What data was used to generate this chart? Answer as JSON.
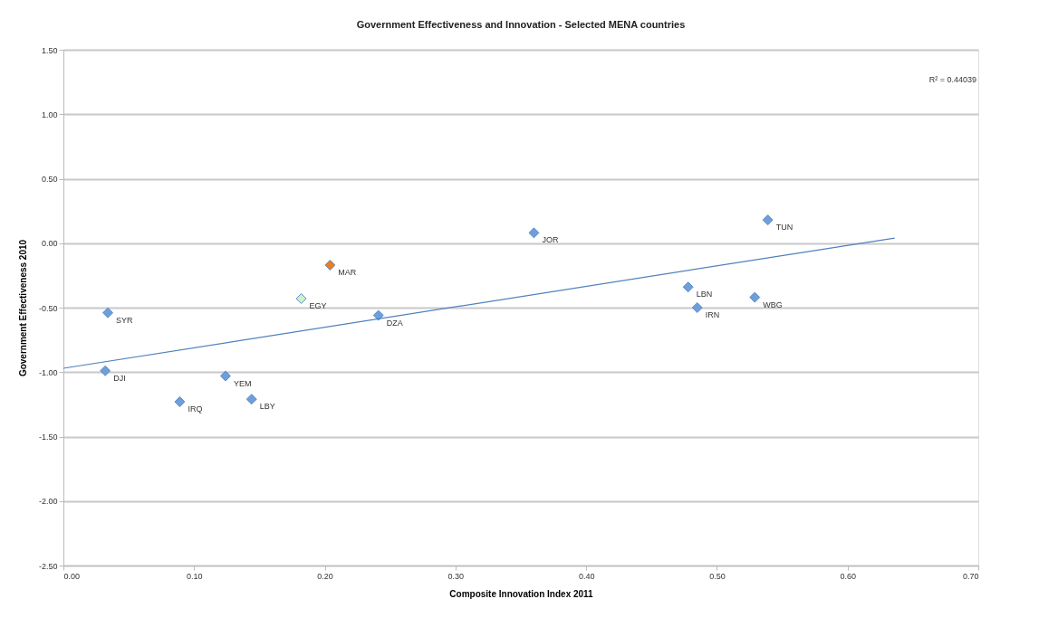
{
  "chart_data": {
    "type": "scatter",
    "title": "Government Effectiveness and Innovation - Selected MENA countries",
    "xlabel": "Composite Innovation Index 2011",
    "ylabel": "Government Effectiveness 2010",
    "xlim": [
      0,
      0.7
    ],
    "xticks": [
      {
        "value": 0,
        "label": "0.00"
      },
      {
        "value": 0.1,
        "label": "0.10"
      },
      {
        "value": 0.2,
        "label": "0.20"
      },
      {
        "value": 0.3,
        "label": "0.30"
      },
      {
        "value": 0.4,
        "label": "0.40"
      },
      {
        "value": 0.5,
        "label": "0.50"
      },
      {
        "value": 0.6,
        "label": "0.60"
      },
      {
        "value": 0.7,
        "label": "0.70"
      }
    ],
    "ylim": [
      -2.5,
      1.5
    ],
    "yticks": [
      {
        "value": -2.5,
        "label": "-2.50"
      },
      {
        "value": -2,
        "label": "-2.00"
      },
      {
        "value": -1.5,
        "label": "-1.50"
      },
      {
        "value": -1,
        "label": "-1.00"
      },
      {
        "value": -0.5,
        "label": "-0.50"
      },
      {
        "value": 0,
        "label": "0.00"
      },
      {
        "value": 0.5,
        "label": "0.50"
      },
      {
        "value": 1,
        "label": "1.00"
      },
      {
        "value": 1.5,
        "label": "1.50"
      }
    ],
    "grid": "y",
    "marker": "diamond",
    "series": [
      {
        "x": [
          0.034,
          0.032,
          0.089,
          0.124,
          0.144,
          0.182,
          0.204,
          0.241,
          0.36,
          0.478,
          0.485,
          0.529,
          0.539
        ],
        "values": [
          -0.54,
          -0.99,
          -1.23,
          -1.03,
          -1.21,
          -0.43,
          -0.17,
          -0.56,
          0.08,
          -0.34,
          -0.5,
          -0.42,
          0.18
        ],
        "colors": [
          "#6f9fd8",
          "#6f9fd8",
          "#6f9fd8",
          "#6f9fd8",
          "#6f9fd8",
          "#ccf2cc",
          "#f07b1a",
          "#6f9fd8",
          "#6f9fd8",
          "#6f9fd8",
          "#6f9fd8",
          "#6f9fd8",
          "#6f9fd8"
        ]
      },
      {
        "type": "line",
        "x": [
          0,
          0.636
        ],
        "values": [
          -0.97,
          0.04
        ],
        "color": "#4f81bd",
        "marker": "none"
      }
    ],
    "annotations": [
      {
        "text": "SYR",
        "x": 0.034,
        "y": -0.54
      },
      {
        "text": "DJI",
        "x": 0.032,
        "y": -0.99
      },
      {
        "text": "IRQ",
        "x": 0.089,
        "y": -1.23
      },
      {
        "text": "YEM",
        "x": 0.124,
        "y": -1.03
      },
      {
        "text": "LBY",
        "x": 0.144,
        "y": -1.21
      },
      {
        "text": "EGY",
        "x": 0.182,
        "y": -0.43
      },
      {
        "text": "MAR",
        "x": 0.204,
        "y": -0.17
      },
      {
        "text": "DZA",
        "x": 0.241,
        "y": -0.56
      },
      {
        "text": "JOR",
        "x": 0.36,
        "y": 0.08
      },
      {
        "text": "LBN",
        "x": 0.478,
        "y": -0.34
      },
      {
        "text": "IRN",
        "x": 0.485,
        "y": -0.5
      },
      {
        "text": "WBG",
        "x": 0.529,
        "y": -0.42
      },
      {
        "text": "TUN",
        "x": 0.539,
        "y": 0.18
      },
      "R² = 0.44039"
    ]
  }
}
